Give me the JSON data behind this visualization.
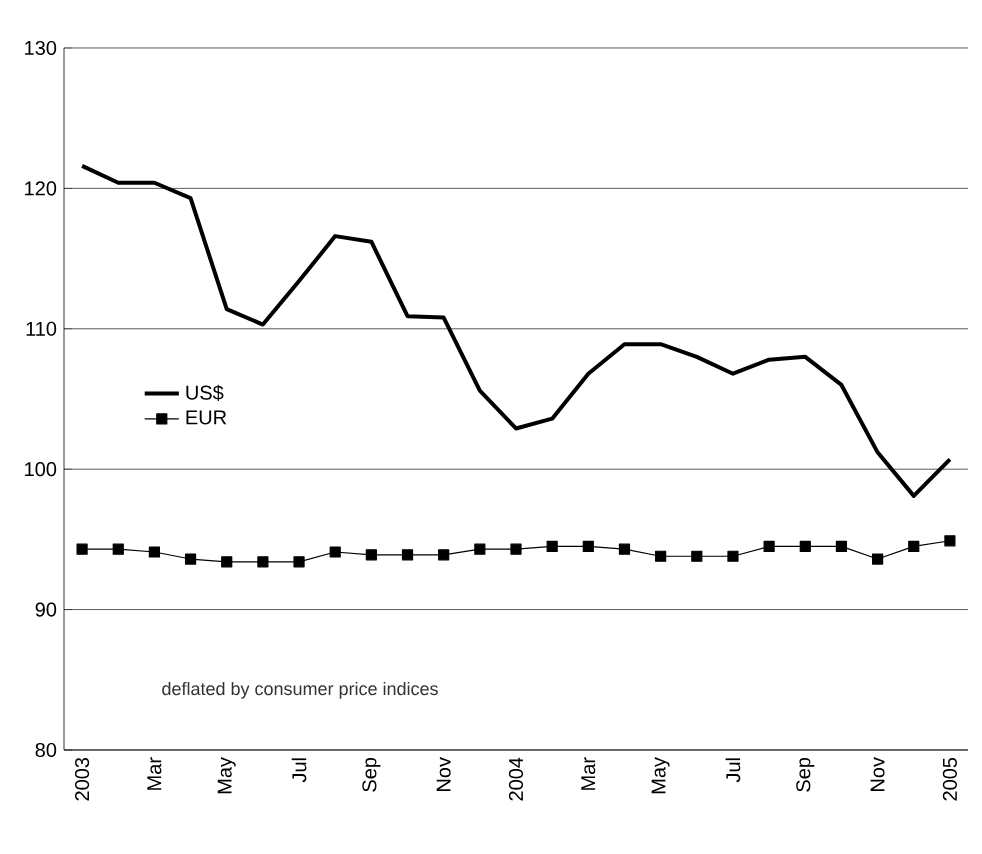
{
  "chart_data": {
    "type": "line",
    "categories": [
      "2003",
      null,
      "Mar",
      null,
      "May",
      null,
      "Jul",
      null,
      "Sep",
      null,
      "Nov",
      null,
      "2004",
      null,
      "Mar",
      null,
      "May",
      null,
      "Jul",
      null,
      "Sep",
      null,
      "Nov",
      null,
      "2005"
    ],
    "series": [
      {
        "name": "US$",
        "color": "#000000",
        "marker": "none",
        "values": [
          121.6,
          120.4,
          120.4,
          119.3,
          111.4,
          110.3,
          113.4,
          116.6,
          116.2,
          110.9,
          110.8,
          105.6,
          102.9,
          103.6,
          106.8,
          108.9,
          108.9,
          108.0,
          106.8,
          107.8,
          108.0,
          106.0,
          101.2,
          98.1,
          100.7
        ]
      },
      {
        "name": "EUR",
        "color": "#000000",
        "marker": "square",
        "values": [
          94.3,
          94.3,
          94.1,
          93.6,
          93.4,
          93.4,
          93.4,
          94.1,
          93.9,
          93.9,
          93.9,
          94.3,
          94.3,
          94.5,
          94.5,
          94.3,
          93.8,
          93.8,
          93.8,
          94.5,
          94.5,
          94.5,
          93.6,
          94.5,
          94.9
        ]
      }
    ],
    "ylim": [
      80,
      130
    ],
    "yticks": [
      80,
      90,
      100,
      110,
      120,
      130
    ],
    "grid": "y",
    "legend": "left",
    "annotations": [
      "deflated by consumer price indices"
    ]
  }
}
